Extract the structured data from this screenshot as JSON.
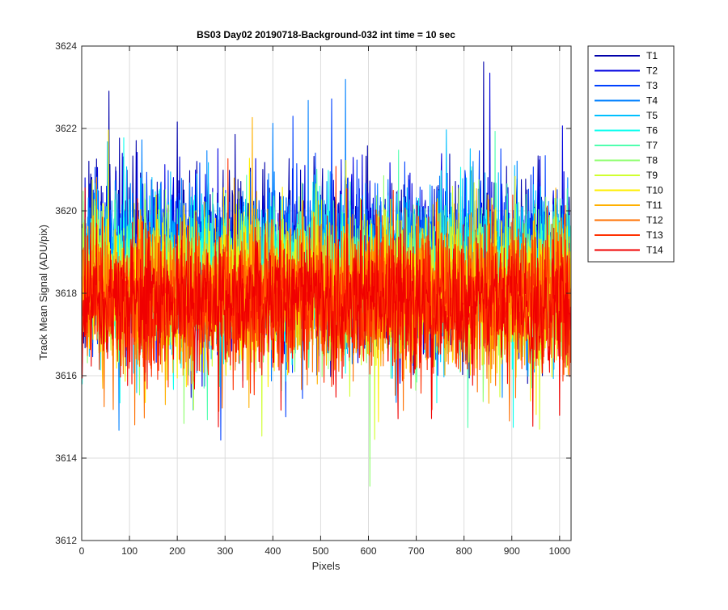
{
  "chart_data": {
    "type": "line",
    "title": "BS03 Day02 20190718-Background-032 int time = 10 sec",
    "xlabel": "Pixels",
    "ylabel": "Track Mean Signal (ADU/pix)",
    "xlim": [
      0,
      1024
    ],
    "ylim": [
      3612,
      3624
    ],
    "x_ticks": [
      0,
      100,
      200,
      300,
      400,
      500,
      600,
      700,
      800,
      900,
      1000
    ],
    "y_ticks": [
      3612,
      3614,
      3616,
      3618,
      3620,
      3622,
      3624
    ],
    "grid": true,
    "legend_position": "outside-right",
    "points_per_series": 1024,
    "series": [
      {
        "name": "T1",
        "color": "#0000aa",
        "mean": 3618.9,
        "spread": 1.6
      },
      {
        "name": "T2",
        "color": "#0000e0",
        "mean": 3618.8,
        "spread": 1.6
      },
      {
        "name": "T3",
        "color": "#0040ff",
        "mean": 3618.7,
        "spread": 1.5
      },
      {
        "name": "T4",
        "color": "#0080ff",
        "mean": 3618.6,
        "spread": 1.5
      },
      {
        "name": "T5",
        "color": "#00c0ff",
        "mean": 3618.5,
        "spread": 1.5
      },
      {
        "name": "T6",
        "color": "#10ffef",
        "mean": 3618.4,
        "spread": 1.4
      },
      {
        "name": "T7",
        "color": "#50ffaf",
        "mean": 3618.3,
        "spread": 1.4
      },
      {
        "name": "T8",
        "color": "#90ff70",
        "mean": 3618.2,
        "spread": 1.4
      },
      {
        "name": "T9",
        "color": "#d0ff30",
        "mean": 3618.1,
        "spread": 1.4
      },
      {
        "name": "T10",
        "color": "#ffef00",
        "mean": 3618.0,
        "spread": 1.4
      },
      {
        "name": "T11",
        "color": "#ffb000",
        "mean": 3617.9,
        "spread": 1.4
      },
      {
        "name": "T12",
        "color": "#ff7000",
        "mean": 3617.9,
        "spread": 1.4
      },
      {
        "name": "T13",
        "color": "#ff3000",
        "mean": 3617.8,
        "spread": 1.3
      },
      {
        "name": "T14",
        "color": "#f00000",
        "mean": 3617.8,
        "spread": 1.3
      }
    ]
  }
}
